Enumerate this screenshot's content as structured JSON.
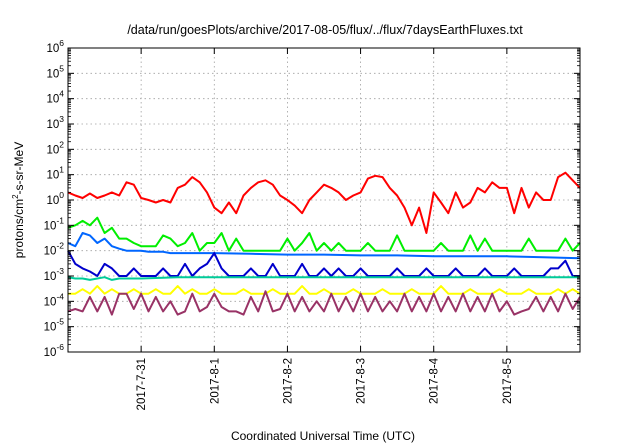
{
  "chart_data": {
    "type": "line",
    "title": "/data/run/goesPlots/archive/2017-08-05/flux/../flux/7daysEarthFluxes.txt",
    "xlabel": "Coordinated Universal Time (UTC)",
    "ylabel": "protons/cm²-s-sr-MeV",
    "ylabel_parts": {
      "pre": "protons/cm",
      "sup": "2",
      "post": "-s-sr-MeV"
    },
    "y_scale": "log",
    "ylim_exp": [
      -6,
      6
    ],
    "y_ticks": [
      {
        "base": "10",
        "exp": "-6"
      },
      {
        "base": "10",
        "exp": "-5"
      },
      {
        "base": "10",
        "exp": "-4"
      },
      {
        "base": "10",
        "exp": "-3"
      },
      {
        "base": "10",
        "exp": "-2"
      },
      {
        "base": "10",
        "exp": "-1"
      },
      {
        "base": "10",
        "exp": "0"
      },
      {
        "base": "10",
        "exp": "1"
      },
      {
        "base": "10",
        "exp": "2"
      },
      {
        "base": "10",
        "exp": "3"
      },
      {
        "base": "10",
        "exp": "4"
      },
      {
        "base": "10",
        "exp": "5"
      },
      {
        "base": "10",
        "exp": "6"
      }
    ],
    "xlim": [
      0,
      7
    ],
    "x_unit": "days",
    "x_ticks": [
      {
        "label": "2017-7-31",
        "x": 1
      },
      {
        "label": "2017-8-1",
        "x": 2
      },
      {
        "label": "2017-8-2",
        "x": 3
      },
      {
        "label": "2017-8-3",
        "x": 4
      },
      {
        "label": "2017-8-4",
        "x": 5
      },
      {
        "label": "2017-8-5",
        "x": 6
      }
    ],
    "grid": true,
    "series": [
      {
        "color": "#ff0000",
        "x": [
          0,
          0.1,
          0.2,
          0.3,
          0.4,
          0.5,
          0.6,
          0.7,
          0.8,
          0.9,
          1.0,
          1.1,
          1.2,
          1.3,
          1.4,
          1.5,
          1.6,
          1.7,
          1.8,
          1.9,
          2.0,
          2.1,
          2.2,
          2.3,
          2.4,
          2.5,
          2.6,
          2.7,
          2.8,
          2.9,
          3.0,
          3.1,
          3.2,
          3.3,
          3.4,
          3.5,
          3.6,
          3.7,
          3.8,
          3.9,
          4.0,
          4.1,
          4.2,
          4.3,
          4.4,
          4.5,
          4.6,
          4.7,
          4.8,
          4.9,
          5.0,
          5.1,
          5.2,
          5.3,
          5.4,
          5.5,
          5.6,
          5.7,
          5.8,
          5.9,
          6.0,
          6.1,
          6.2,
          6.3,
          6.4,
          6.5,
          6.6,
          6.7,
          6.8,
          6.9,
          7.0
        ],
        "values": [
          2.0,
          1.5,
          1.2,
          1.8,
          1.2,
          1.5,
          2.0,
          1.5,
          5.0,
          4.0,
          1.2,
          1.0,
          0.8,
          1.0,
          0.8,
          3.0,
          4.0,
          8.0,
          5.0,
          2.0,
          0.5,
          0.3,
          0.8,
          0.3,
          1.5,
          3.0,
          5.0,
          6.0,
          4.0,
          1.5,
          1.0,
          0.6,
          0.3,
          1.0,
          2.0,
          4.0,
          3.0,
          2.0,
          1.0,
          1.5,
          2.0,
          7.0,
          9.0,
          8.0,
          3.0,
          1.5,
          0.5,
          0.1,
          0.5,
          0.05,
          2.0,
          0.8,
          0.3,
          2.0,
          0.5,
          0.8,
          3.0,
          2.0,
          5.0,
          3.0,
          3.0,
          0.3,
          3.0,
          0.5,
          2.0,
          1.0,
          1.0,
          8.0,
          12.0,
          6.0,
          3.0
        ]
      },
      {
        "color": "#00ee00",
        "x": [
          0,
          0.1,
          0.2,
          0.3,
          0.4,
          0.5,
          0.6,
          0.7,
          0.8,
          0.9,
          1.0,
          1.1,
          1.2,
          1.3,
          1.4,
          1.5,
          1.6,
          1.7,
          1.8,
          1.9,
          2.0,
          2.1,
          2.2,
          2.3,
          2.4,
          2.5,
          2.6,
          2.7,
          2.8,
          2.9,
          3.0,
          3.1,
          3.2,
          3.3,
          3.4,
          3.5,
          3.6,
          3.7,
          3.8,
          3.9,
          4.0,
          4.1,
          4.2,
          4.3,
          4.4,
          4.5,
          4.6,
          4.7,
          4.8,
          4.9,
          5.0,
          5.1,
          5.2,
          5.3,
          5.4,
          5.5,
          5.6,
          5.7,
          5.8,
          5.9,
          6.0,
          6.1,
          6.2,
          6.3,
          6.4,
          6.5,
          6.6,
          6.7,
          6.8,
          6.9,
          7.0
        ],
        "values": [
          0.08,
          0.1,
          0.15,
          0.1,
          0.2,
          0.05,
          0.08,
          0.03,
          0.03,
          0.02,
          0.015,
          0.015,
          0.015,
          0.04,
          0.03,
          0.015,
          0.02,
          0.05,
          0.01,
          0.02,
          0.02,
          0.05,
          0.01,
          0.03,
          0.01,
          0.01,
          0.01,
          0.01,
          0.01,
          0.01,
          0.03,
          0.01,
          0.02,
          0.05,
          0.01,
          0.02,
          0.01,
          0.02,
          0.01,
          0.01,
          0.01,
          0.02,
          0.01,
          0.01,
          0.01,
          0.04,
          0.01,
          0.01,
          0.01,
          0.01,
          0.01,
          0.02,
          0.01,
          0.01,
          0.01,
          0.04,
          0.01,
          0.03,
          0.01,
          0.01,
          0.01,
          0.01,
          0.01,
          0.03,
          0.01,
          0.01,
          0.01,
          0.01,
          0.03,
          0.01,
          0.02
        ]
      },
      {
        "color": "#0066ff",
        "x": [
          0,
          0.1,
          0.2,
          0.3,
          0.4,
          0.5,
          0.6,
          0.7,
          0.8,
          0.9,
          1.0,
          1.1,
          1.2,
          1.3,
          1.4,
          1.5,
          1.6,
          1.7,
          1.8,
          1.9,
          2.0,
          2.5,
          3.0,
          3.5,
          4.0,
          4.5,
          5.0,
          5.5,
          6.0,
          6.5,
          7.0
        ],
        "values": [
          0.02,
          0.015,
          0.05,
          0.04,
          0.02,
          0.03,
          0.015,
          0.012,
          0.01,
          0.01,
          0.01,
          0.009,
          0.009,
          0.009,
          0.008,
          0.008,
          0.008,
          0.008,
          0.008,
          0.008,
          0.008,
          0.0075,
          0.007,
          0.007,
          0.0065,
          0.0065,
          0.006,
          0.006,
          0.006,
          0.0055,
          0.005
        ]
      },
      {
        "color": "#0000cc",
        "x": [
          0,
          0.1,
          0.2,
          0.3,
          0.4,
          0.5,
          0.6,
          0.7,
          0.8,
          0.9,
          1.0,
          1.1,
          1.2,
          1.3,
          1.4,
          1.5,
          1.6,
          1.7,
          1.8,
          1.9,
          2.0,
          2.1,
          2.2,
          2.3,
          2.4,
          2.5,
          2.6,
          2.7,
          2.8,
          2.9,
          3.0,
          3.1,
          3.2,
          3.3,
          3.4,
          3.5,
          3.6,
          3.7,
          3.8,
          3.9,
          4.0,
          4.1,
          4.2,
          4.3,
          4.4,
          4.5,
          4.6,
          4.7,
          4.8,
          4.9,
          5.0,
          5.1,
          5.2,
          5.3,
          5.4,
          5.5,
          5.6,
          5.7,
          5.8,
          5.9,
          6.0,
          6.1,
          6.2,
          6.3,
          6.4,
          6.5,
          6.6,
          6.7,
          6.8,
          6.9,
          7.0
        ],
        "values": [
          0.01,
          0.003,
          0.002,
          0.0015,
          0.001,
          0.003,
          0.002,
          0.001,
          0.001,
          0.002,
          0.001,
          0.001,
          0.001,
          0.002,
          0.001,
          0.001,
          0.003,
          0.001,
          0.002,
          0.003,
          0.008,
          0.002,
          0.001,
          0.001,
          0.001,
          0.002,
          0.001,
          0.001,
          0.003,
          0.001,
          0.001,
          0.001,
          0.003,
          0.001,
          0.001,
          0.002,
          0.001,
          0.002,
          0.001,
          0.001,
          0.002,
          0.001,
          0.001,
          0.001,
          0.001,
          0.002,
          0.001,
          0.001,
          0.001,
          0.002,
          0.001,
          0.001,
          0.001,
          0.002,
          0.001,
          0.001,
          0.001,
          0.002,
          0.001,
          0.001,
          0.001,
          0.002,
          0.001,
          0.001,
          0.001,
          0.001,
          0.002,
          0.002,
          0.004,
          0.001,
          0.001
        ]
      },
      {
        "color": "#00cc99",
        "x": [
          0,
          0.1,
          0.2,
          0.3,
          0.4,
          0.5,
          0.6,
          0.7,
          0.8,
          0.9,
          1.0,
          1.5,
          2.0,
          2.5,
          3.0,
          3.5,
          4.0,
          4.5,
          5.0,
          5.5,
          6.0,
          6.5,
          7.0
        ],
        "values": [
          0.0009,
          0.0008,
          0.0008,
          0.0007,
          0.0008,
          0.0009,
          0.0007,
          0.0008,
          0.0008,
          0.0008,
          0.0008,
          0.0009,
          0.0009,
          0.0009,
          0.0009,
          0.0009,
          0.0009,
          0.0009,
          0.0009,
          0.0009,
          0.0009,
          0.0009,
          0.0009
        ]
      },
      {
        "color": "#ffff00",
        "x": [
          0,
          0.1,
          0.2,
          0.3,
          0.4,
          0.5,
          0.6,
          0.7,
          0.8,
          0.9,
          1.0,
          1.1,
          1.2,
          1.3,
          1.4,
          1.5,
          1.6,
          1.7,
          1.8,
          1.9,
          2.0,
          2.1,
          2.2,
          2.3,
          2.4,
          2.5,
          2.6,
          2.7,
          2.8,
          2.9,
          3.0,
          3.1,
          3.2,
          3.3,
          3.4,
          3.5,
          3.6,
          3.7,
          3.8,
          3.9,
          4.0,
          4.1,
          4.2,
          4.3,
          4.4,
          4.5,
          4.6,
          4.7,
          4.8,
          4.9,
          5.0,
          5.1,
          5.2,
          5.3,
          5.4,
          5.5,
          5.6,
          5.7,
          5.8,
          5.9,
          6.0,
          6.1,
          6.2,
          6.3,
          6.4,
          6.5,
          6.6,
          6.7,
          6.8,
          6.9,
          7.0
        ],
        "values": [
          0.0002,
          0.0002,
          0.0003,
          0.0002,
          0.0004,
          0.0002,
          0.0003,
          0.0002,
          0.0002,
          0.0003,
          0.0002,
          0.0002,
          0.0003,
          0.0002,
          0.0002,
          0.0004,
          0.0002,
          0.0003,
          0.0002,
          0.0002,
          0.0003,
          0.0002,
          0.0002,
          0.0002,
          0.0003,
          0.0002,
          0.0002,
          0.0002,
          0.0003,
          0.0002,
          0.0002,
          0.0002,
          0.0004,
          0.0002,
          0.0002,
          0.0003,
          0.0002,
          0.0002,
          0.0002,
          0.0003,
          0.0002,
          0.0002,
          0.0002,
          0.0003,
          0.0002,
          0.0002,
          0.0002,
          0.0003,
          0.0002,
          0.0002,
          0.0002,
          0.0004,
          0.0002,
          0.0002,
          0.0002,
          0.0003,
          0.0002,
          0.0002,
          0.0002,
          0.0003,
          0.0002,
          0.0002,
          0.0002,
          0.0003,
          0.0002,
          0.0002,
          0.0002,
          0.0003,
          0.0002,
          0.0003,
          0.0002
        ]
      },
      {
        "color": "#993366",
        "x": [
          0,
          0.1,
          0.2,
          0.3,
          0.4,
          0.5,
          0.6,
          0.7,
          0.8,
          0.9,
          1.0,
          1.1,
          1.2,
          1.3,
          1.4,
          1.5,
          1.6,
          1.7,
          1.8,
          1.9,
          2.0,
          2.1,
          2.2,
          2.3,
          2.4,
          2.5,
          2.6,
          2.7,
          2.8,
          2.9,
          3.0,
          3.1,
          3.2,
          3.3,
          3.4,
          3.5,
          3.6,
          3.7,
          3.8,
          3.9,
          4.0,
          4.1,
          4.2,
          4.3,
          4.4,
          4.5,
          4.6,
          4.7,
          4.8,
          4.9,
          5.0,
          5.1,
          5.2,
          5.3,
          5.4,
          5.5,
          5.6,
          5.7,
          5.8,
          5.9,
          6.0,
          6.1,
          6.2,
          6.3,
          6.4,
          6.5,
          6.6,
          6.7,
          6.8,
          6.9,
          7.0
        ],
        "values": [
          4e-05,
          5e-05,
          4e-05,
          0.00015,
          4e-05,
          0.00015,
          3e-05,
          0.0002,
          0.0002,
          5e-05,
          0.0002,
          4e-05,
          0.00015,
          4e-05,
          0.0001,
          3e-05,
          4e-05,
          0.0002,
          4e-05,
          6e-05,
          0.0002,
          6e-05,
          4e-05,
          4e-05,
          3e-05,
          0.00015,
          4e-05,
          0.00025,
          4e-05,
          5e-05,
          0.0002,
          4e-05,
          0.00015,
          4e-05,
          0.0001,
          4e-05,
          0.0002,
          4e-05,
          0.00015,
          4e-05,
          0.0002,
          4e-05,
          0.00015,
          4e-05,
          0.0001,
          4e-05,
          0.0002,
          4e-05,
          0.00015,
          4e-05,
          0.0002,
          4e-05,
          0.00015,
          4e-05,
          0.0002,
          4e-05,
          0.00015,
          4e-05,
          0.0002,
          4e-05,
          0.0001,
          3e-05,
          4e-05,
          5e-05,
          0.00015,
          4e-05,
          0.00015,
          4e-05,
          0.0002,
          5e-05,
          0.00015
        ]
      }
    ]
  }
}
